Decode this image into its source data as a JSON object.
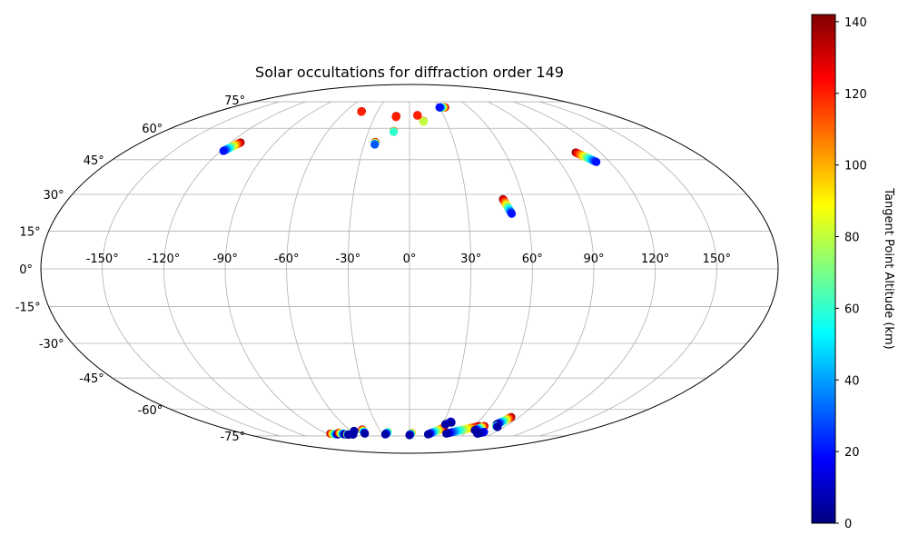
{
  "chart_data": {
    "type": "scatter",
    "projection": "mollweide",
    "title": "Solar occultations for diffraction order 149",
    "grid": true,
    "longitude_ticks": [
      "-150°",
      "-120°",
      "-90°",
      "-60°",
      "-30°",
      "0°",
      "30°",
      "60°",
      "90°",
      "120°",
      "150°"
    ],
    "latitude_ticks": [
      "-75°",
      "-60°",
      "-45°",
      "-30°",
      "-15°",
      "0°",
      "15°",
      "30°",
      "45°",
      "60°",
      "75°"
    ],
    "colorbar": {
      "label": "Tangent Point Altitude (km)",
      "colormap": "jet",
      "range": [
        0,
        142
      ],
      "ticks": [
        "0",
        "20",
        "40",
        "60",
        "80",
        "100",
        "120",
        "140"
      ],
      "colormap_stops": [
        "#000080",
        "#0000ff",
        "#0080ff",
        "#00ffff",
        "#80ff80",
        "#ffff00",
        "#ff8000",
        "#ff0000",
        "#800000"
      ]
    },
    "tracks": [
      {
        "lon_start": -118.2,
        "lat_start": 49.0,
        "lon_end": -113.3,
        "lat_end": 53.0,
        "alt_start": 20,
        "alt_end": 140
      },
      {
        "lon_start": -45.0,
        "lat_start": 69.0,
        "lon_end": -45.0,
        "lat_end": 69.2,
        "alt_start": 120,
        "alt_end": 140
      },
      {
        "lon_start": -11.6,
        "lat_start": 66.0,
        "lon_end": -11.6,
        "lat_end": 66.5,
        "alt_start": 120,
        "alt_end": 140
      },
      {
        "lon_start": 7.0,
        "lat_start": 66.8,
        "lon_end": 7.0,
        "lat_end": 67.0,
        "alt_start": 120,
        "alt_end": 140
      },
      {
        "lon_start": 11.4,
        "lat_start": 63.5,
        "lon_end": 11.4,
        "lat_end": 63.8,
        "alt_start": 80,
        "alt_end": 140
      },
      {
        "lon_start": -11.6,
        "lat_start": 58.2,
        "lon_end": -11.6,
        "lat_end": 58.6,
        "alt_start": 60,
        "alt_end": 140
      },
      {
        "lon_start": -23.0,
        "lat_start": 52.0,
        "lon_end": -23.0,
        "lat_end": 53.2,
        "alt_start": 30,
        "alt_end": 140
      },
      {
        "lon_start": 30.3,
        "lat_start": 71.5,
        "lon_end": 36.0,
        "lat_end": 71.5,
        "alt_start": 20,
        "alt_end": 140
      },
      {
        "lon_start": 112.0,
        "lat_start": 44.0,
        "lon_end": 104.6,
        "lat_end": 48.3,
        "alt_start": 20,
        "alt_end": 140
      },
      {
        "lon_start": 52.3,
        "lat_start": 22.0,
        "lon_end": 49.3,
        "lat_end": 28.0,
        "alt_start": 20,
        "alt_end": 140
      },
      {
        "lon_start": -79.0,
        "lat_start": -74.0,
        "lon_end": -86.0,
        "lat_end": -73.5,
        "alt_start": 5,
        "alt_end": 140
      },
      {
        "lon_start": -71.5,
        "lat_start": -74.0,
        "lon_end": -75.5,
        "lat_end": -73.0,
        "alt_start": 5,
        "alt_end": 140
      },
      {
        "lon_start": -68.0,
        "lat_start": -74.2,
        "lon_end": -69.0,
        "lat_end": -74.0,
        "alt_start": 5,
        "alt_end": 100
      },
      {
        "lon_start": -62.5,
        "lat_start": -74.0,
        "lon_end": -62.5,
        "lat_end": -74.0,
        "alt_start": 5,
        "alt_end": 60
      },
      {
        "lon_start": -57.0,
        "lat_start": -72.0,
        "lon_end": -57.0,
        "lat_end": -72.0,
        "alt_start": 5,
        "alt_end": 40
      },
      {
        "lon_start": -48.5,
        "lat_start": -73.5,
        "lon_end": -47.0,
        "lat_end": -71.0,
        "alt_start": 5,
        "alt_end": 140
      },
      {
        "lon_start": -26.8,
        "lat_start": -74.0,
        "lon_end": -22.6,
        "lat_end": -72.5,
        "alt_start": 5,
        "alt_end": 80
      },
      {
        "lon_start": 0.0,
        "lat_start": -74.5,
        "lon_end": 2.3,
        "lat_end": -73.0,
        "alt_start": 5,
        "alt_end": 110
      },
      {
        "lon_start": 20.5,
        "lat_start": -74.0,
        "lon_end": 33.0,
        "lat_end": -70.0,
        "alt_start": 5,
        "alt_end": 140
      },
      {
        "lon_start": 32.5,
        "lat_start": -68.0,
        "lon_end": 33.5,
        "lat_end": -67.5,
        "alt_start": 5,
        "alt_end": 140
      },
      {
        "lon_start": 37.0,
        "lat_start": -67.0,
        "lon_end": 36.0,
        "lat_end": -66.5,
        "alt_start": 5,
        "alt_end": 20
      },
      {
        "lon_start": 40.0,
        "lat_start": -73.5,
        "lon_end": 65.0,
        "lat_end": -69.0,
        "alt_start": 5,
        "alt_end": 140
      },
      {
        "lon_start": 66.0,
        "lat_start": -71.5,
        "lon_end": 70.0,
        "lat_end": -69.0,
        "alt_start": 5,
        "alt_end": 140
      },
      {
        "lon_start": 73.5,
        "lat_start": -73.5,
        "lon_end": 78.0,
        "lat_end": -72.5,
        "alt_start": 5,
        "alt_end": 20
      },
      {
        "lon_start": 79.0,
        "lat_start": -68.0,
        "lon_end": 83.5,
        "lat_end": -64.0,
        "alt_start": 5,
        "alt_end": 140
      },
      {
        "lon_start": 83.5,
        "lat_start": -69.5,
        "lon_end": 81.0,
        "lat_end": -69.0,
        "alt_start": 5,
        "alt_end": 80
      }
    ]
  }
}
